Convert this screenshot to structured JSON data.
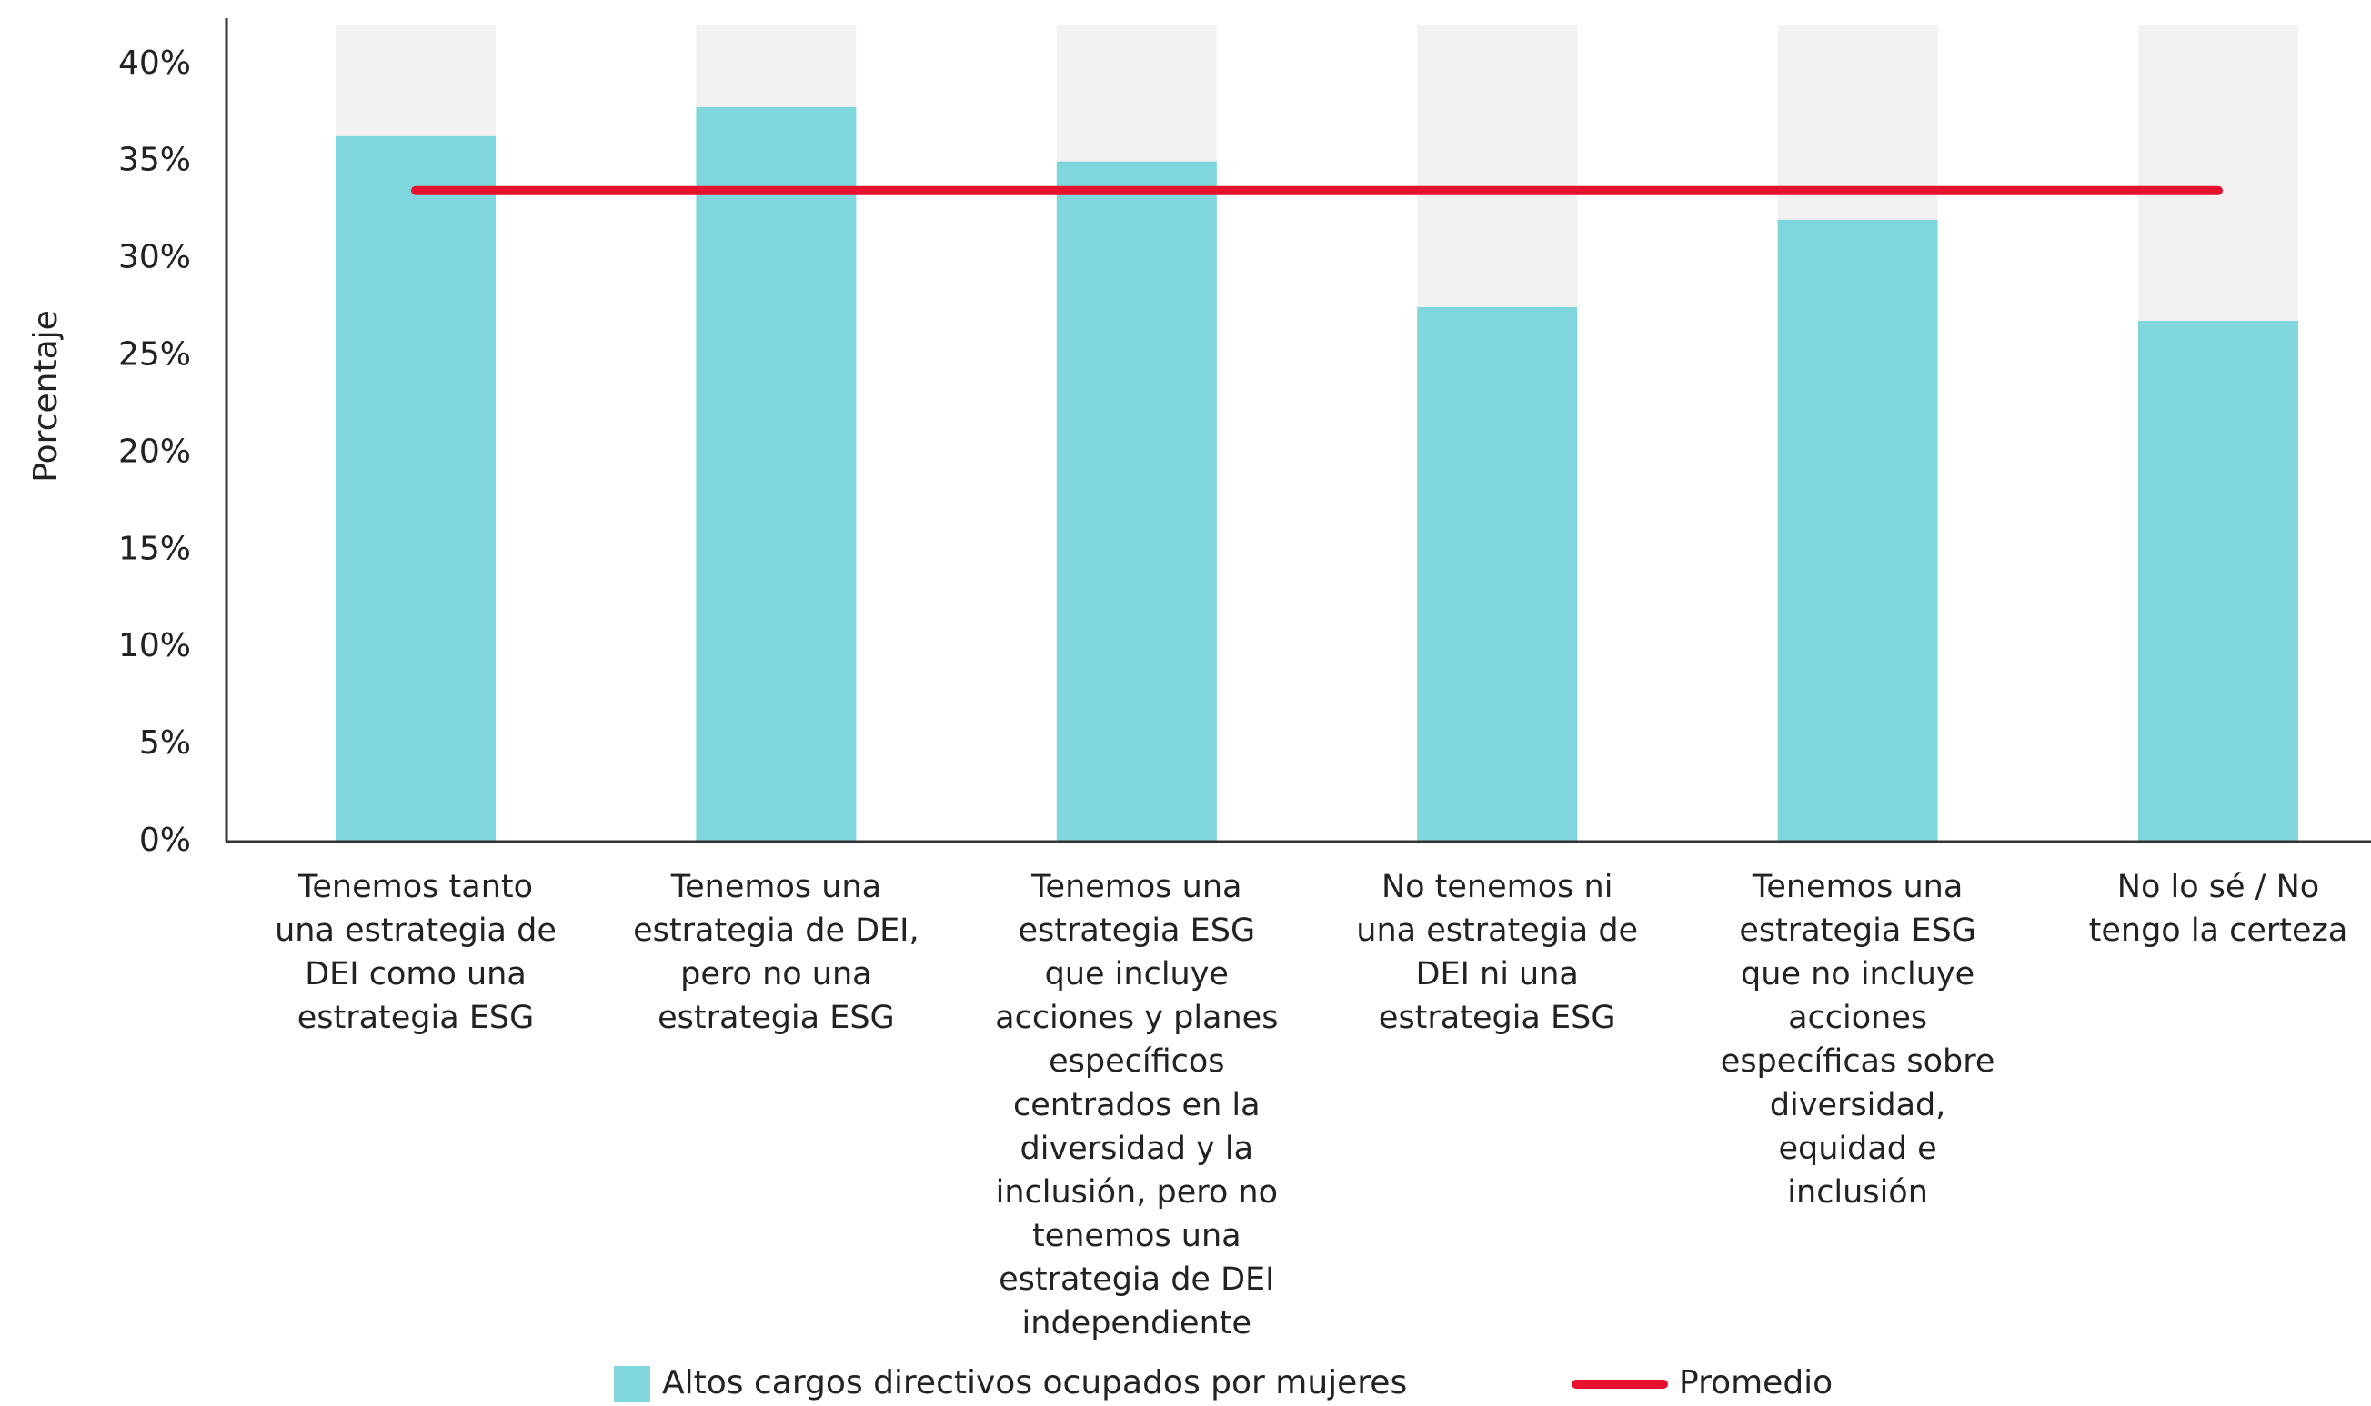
{
  "chart_data": {
    "type": "bar",
    "y_label": "Porcentaje",
    "categories": [
      "Tenemos tanto una estrategia de DEI como una estrategia ESG",
      "Tenemos una estrategia de DEI, pero no una estrategia ESG",
      "Tenemos una estrategia ESG que incluye acciones y planes específicos centrados en la diversidad y la inclusión, pero no tenemos una estrategia de DEI independiente",
      "No tenemos ni una estrategia de DEI ni una estrategia ESG",
      "Tenemos una estrategia ESG que no incluye acciones específicas sobre diversidad, equidad e inclusión",
      "No lo sé / No tengo la certeza"
    ],
    "series": [
      {
        "name": "Altos cargos directivos ocupados por mujeres",
        "type": "bar",
        "color": "#80d6dd",
        "values": [
          36.3,
          37.8,
          35.0,
          27.5,
          32.0,
          26.8
        ]
      },
      {
        "name": "Promedio",
        "type": "line",
        "color": "#e8112d",
        "values": [
          33.5,
          33.5,
          33.5,
          33.5,
          33.5,
          33.5
        ]
      }
    ],
    "background_color": "#f3f2f1",
    "ylim": [
      0,
      42
    ],
    "yticks": [
      {
        "value": 0,
        "label": "0%"
      },
      {
        "value": 5,
        "label": "5%"
      },
      {
        "value": 10,
        "label": "10%"
      },
      {
        "value": 15,
        "label": "15%"
      },
      {
        "value": 20,
        "label": "20%"
      },
      {
        "value": 25,
        "label": "25%"
      },
      {
        "value": 30,
        "label": "30%"
      },
      {
        "value": 35,
        "label": "35%"
      },
      {
        "value": 40,
        "label": "40%"
      }
    ],
    "legend": "bottom"
  }
}
